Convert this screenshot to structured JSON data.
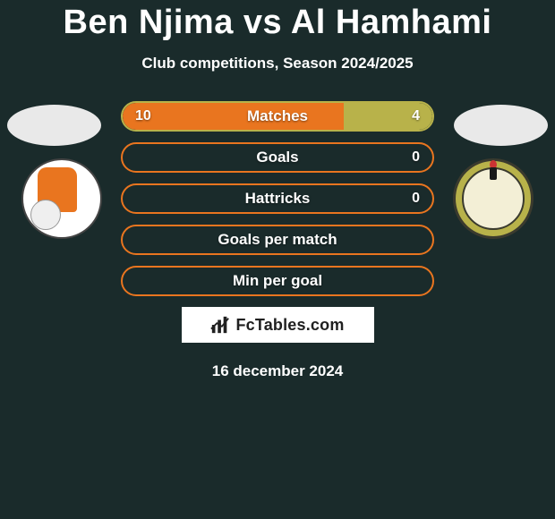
{
  "title": "Ben Njima vs Al Hamhami",
  "subtitle": "Club competitions, Season 2024/2025",
  "date": "16 december 2024",
  "branding": {
    "text": "FcTables.com"
  },
  "colors": {
    "background": "#1a2b2b",
    "left_fill": "#e9751f",
    "right_fill": "#b8b24a",
    "border_orange": "#e9751f",
    "border_olive": "#b8b24a",
    "text": "#ffffff"
  },
  "stats": [
    {
      "label": "Matches",
      "left_value": "10",
      "right_value": "4",
      "left_pct": 71.4,
      "right_pct": 28.6,
      "border": "#b8b24a",
      "left_fill_color": "#e9751f",
      "right_fill_color": "#b8b24a",
      "show_left": true,
      "show_right": true
    },
    {
      "label": "Goals",
      "left_value": "0",
      "right_value": "0",
      "left_pct": 0,
      "right_pct": 0,
      "border": "#e9751f",
      "left_fill_color": "#e9751f",
      "right_fill_color": "#b8b24a",
      "show_left": false,
      "show_right": true
    },
    {
      "label": "Hattricks",
      "left_value": "0",
      "right_value": "0",
      "left_pct": 0,
      "right_pct": 0,
      "border": "#e9751f",
      "left_fill_color": "#e9751f",
      "right_fill_color": "#b8b24a",
      "show_left": false,
      "show_right": true
    },
    {
      "label": "Goals per match",
      "left_value": "",
      "right_value": "",
      "left_pct": 0,
      "right_pct": 0,
      "border": "#e9751f",
      "left_fill_color": "#e9751f",
      "right_fill_color": "#b8b24a",
      "show_left": false,
      "show_right": false
    },
    {
      "label": "Min per goal",
      "left_value": "",
      "right_value": "",
      "left_pct": 0,
      "right_pct": 0,
      "border": "#e9751f",
      "left_fill_color": "#e9751f",
      "right_fill_color": "#b8b24a",
      "show_left": false,
      "show_right": false
    }
  ]
}
